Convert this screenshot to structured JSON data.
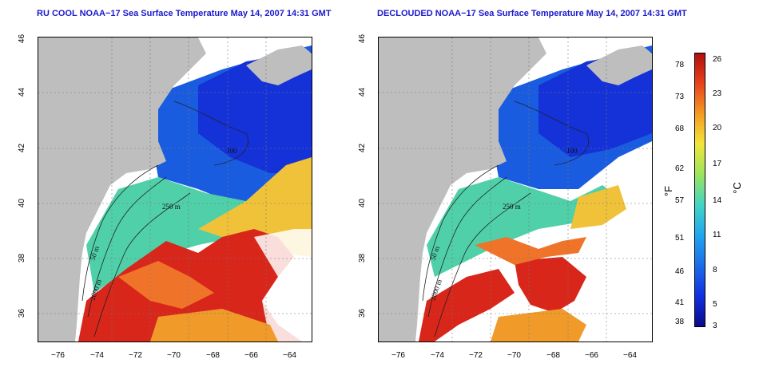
{
  "panels": [
    {
      "title": "RU COOL NOAA−17 Sea Surface Temperature May 14, 2007 14:31 GMT"
    },
    {
      "title": "DECLOUDED NOAA−17 Sea Surface Temperature May 14, 2007 14:31 GMT"
    }
  ],
  "axes": {
    "lon_ticks": [
      "−76",
      "−74",
      "−72",
      "−70",
      "−68",
      "−66",
      "−64"
    ],
    "lat_ticks": [
      "46",
      "44",
      "42",
      "40",
      "38",
      "36"
    ]
  },
  "contour_labels": [
    "50 m",
    "100",
    "250 m",
    "2000 m",
    "200"
  ],
  "colorbar": {
    "fahrenheit_ticks": [
      "78",
      "73",
      "68",
      "62",
      "57",
      "51",
      "46",
      "41",
      "38"
    ],
    "celsius_ticks": [
      "26",
      "23",
      "20",
      "17",
      "14",
      "11",
      "8",
      "5",
      "3"
    ],
    "unit_f": "°F",
    "unit_c": "°C",
    "colors": [
      "#0b0b8a",
      "#1030e0",
      "#1b6ce8",
      "#1fa4f0",
      "#3fd4c8",
      "#9ee55a",
      "#f2e53a",
      "#f59a23",
      "#e8421b",
      "#b0100e"
    ]
  },
  "colors": {
    "land": "#bebebe",
    "title": "#1a1acc"
  }
}
